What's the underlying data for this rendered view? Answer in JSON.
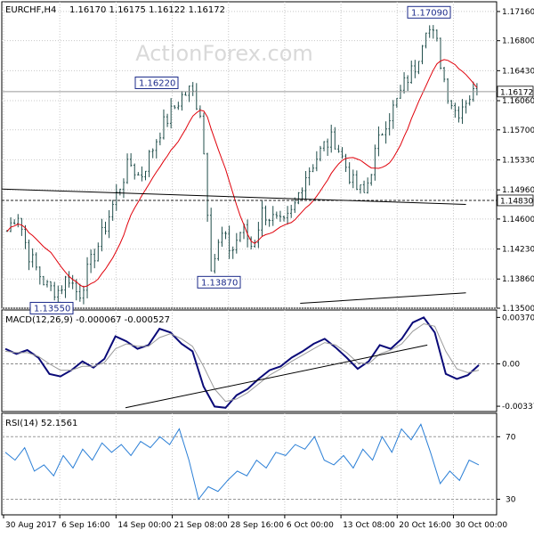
{
  "header": {
    "symbol": "EURCHF,H4",
    "ohlc": "1.16170 1.16175 1.16122 1.16172"
  },
  "watermark": "ActionForex.com",
  "colors": {
    "candle": "#1f4d4a",
    "ma": "#e0000a",
    "macd": "#0a0a78",
    "signal": "#9a9a9a",
    "rsi": "#2b7fd6",
    "trendline": "#000000",
    "hline": "#000000",
    "grid": "#c8c8c8"
  },
  "x_axis": {
    "ticks": [
      "30 Aug 2017",
      "6 Sep 16:00",
      "14 Sep 00:00",
      "21 Sep 08:00",
      "28 Sep 16:00",
      "6 Oct 00:00",
      "13 Oct 08:00",
      "20 Oct 16:00",
      "30 Oct 00:00"
    ]
  },
  "chart_data": [
    {
      "type": "candlestick",
      "panel": "price",
      "ylim": [
        1.135,
        1.1728
      ],
      "y_ticks": [
        "1.17160",
        "1.16800",
        "1.16430",
        "1.16060",
        "1.15700",
        "1.15330",
        "1.14960",
        "1.14600",
        "1.14230",
        "1.13860",
        "1.13500"
      ],
      "current_price": "1.16172",
      "moving_average": "red",
      "annotations": [
        {
          "label": "1.17090",
          "value": 1.1709
        },
        {
          "label": "1.16220",
          "value": 1.1622
        },
        {
          "label": "1.13870",
          "value": 1.1387
        },
        {
          "label": "1.13550",
          "value": 1.1355
        }
      ],
      "horizontal_lines": [
        {
          "value": 1.1483,
          "label": "1.14830",
          "style": "dashed"
        },
        {
          "value": 1.16172,
          "label": "1.16172",
          "style": "solid"
        }
      ],
      "trendlines": [
        {
          "from": [
            0,
            1.1497
          ],
          "to": [
            14,
            1.1478
          ]
        },
        {
          "from": [
            9,
            1.1356
          ],
          "to": [
            14,
            1.1369
          ]
        }
      ],
      "close_path": [
        1.1445,
        1.147,
        1.142,
        1.1395,
        1.1375,
        1.1372,
        1.139,
        1.1365,
        1.14,
        1.143,
        1.1465,
        1.15,
        1.153,
        1.151,
        1.154,
        1.157,
        1.159,
        1.161,
        1.162,
        1.159,
        1.14,
        1.144,
        1.142,
        1.145,
        1.1425,
        1.147,
        1.146,
        1.145,
        1.147,
        1.151,
        1.153,
        1.155,
        1.156,
        1.153,
        1.15,
        1.149,
        1.154,
        1.158,
        1.16,
        1.163,
        1.165,
        1.17,
        1.168,
        1.162,
        1.159,
        1.161,
        1.1617
      ]
    },
    {
      "type": "line",
      "panel": "macd",
      "title": "MACD(12,26,9) -0.000067 -0.000527",
      "ylim": [
        -0.0038,
        0.0043
      ],
      "y_ticks": [
        "0.003705",
        "0.00",
        "-0.003379"
      ],
      "zero_line": 0,
      "trendline": {
        "from": [
          0.25,
          -0.0035
        ],
        "to": [
          0.86,
          0.0015
        ]
      },
      "series": [
        {
          "name": "MACD",
          "values": [
            0.0012,
            0.0008,
            0.0011,
            0.0005,
            -0.0008,
            -0.001,
            -0.0005,
            0.0002,
            -0.0003,
            0.0004,
            0.0022,
            0.0018,
            0.0012,
            0.0015,
            0.0028,
            0.0025,
            0.0016,
            0.001,
            -0.0018,
            -0.0034,
            -0.0035,
            -0.0025,
            -0.002,
            -0.0012,
            -0.0005,
            -0.0002,
            0.0005,
            0.001,
            0.0016,
            0.002,
            0.0013,
            0.0005,
            -0.0004,
            0.0002,
            0.0015,
            0.0012,
            0.002,
            0.0033,
            0.0037,
            0.0025,
            -0.0008,
            -0.0012,
            -0.0009,
            -0.0001
          ]
        },
        {
          "name": "Signal",
          "values": [
            0.001,
            0.0009,
            0.0009,
            0.0006,
            0.0,
            -0.0005,
            -0.0005,
            -0.0002,
            -0.0002,
            0.0001,
            0.0012,
            0.0016,
            0.0014,
            0.0014,
            0.0021,
            0.0024,
            0.002,
            0.0014,
            -0.0002,
            -0.002,
            -0.003,
            -0.0028,
            -0.0023,
            -0.0016,
            -0.0009,
            -0.0004,
            0.0002,
            0.0007,
            0.0012,
            0.0017,
            0.0015,
            0.0009,
            0.0001,
            0.0,
            0.0008,
            0.0011,
            0.0016,
            0.0026,
            0.0032,
            0.003,
            0.001,
            -0.0004,
            -0.0007,
            -0.0005
          ]
        }
      ]
    },
    {
      "type": "line",
      "panel": "rsi",
      "title": "RSI(14) 52.1561",
      "ylim": [
        20,
        85
      ],
      "y_ticks": [
        "70",
        "30"
      ],
      "levels": [
        70,
        30
      ],
      "series": [
        {
          "name": "RSI",
          "values": [
            60,
            55,
            63,
            48,
            52,
            45,
            58,
            50,
            62,
            55,
            66,
            60,
            65,
            58,
            67,
            63,
            70,
            65,
            75,
            55,
            30,
            38,
            35,
            42,
            48,
            45,
            55,
            50,
            60,
            58,
            65,
            62,
            70,
            55,
            52,
            58,
            50,
            62,
            55,
            70,
            60,
            75,
            68,
            78,
            60,
            40,
            48,
            42,
            55,
            52
          ]
        }
      ]
    }
  ]
}
